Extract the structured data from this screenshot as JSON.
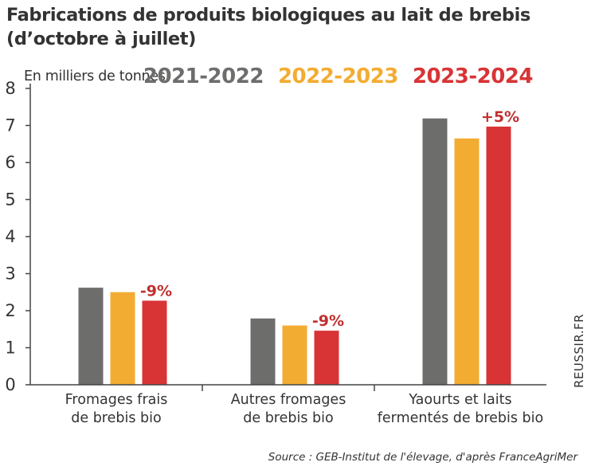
{
  "chart_data": {
    "type": "bar",
    "title_lines": [
      "Fabrications de produits biologiques au lait de brebis",
      "(d’octobre à juillet)"
    ],
    "ylabel": "En milliers de tonnes",
    "ylim": [
      0,
      8
    ],
    "yticks": [
      0,
      1,
      2,
      3,
      4,
      5,
      6,
      7,
      8
    ],
    "grid": false,
    "legend_position": "top-right",
    "categories": [
      [
        "Fromages frais",
        "de brebis bio"
      ],
      [
        "Autres fromages",
        "de brebis bio"
      ],
      [
        "Yaourts et laits",
        "fermentés de brebis bio"
      ]
    ],
    "series": [
      {
        "name": "2021-2022",
        "color": "#6d6d6b",
        "values": [
          2.62,
          1.79,
          7.19
        ]
      },
      {
        "name": "2022-2023",
        "color": "#f3ac32",
        "values": [
          2.5,
          1.6,
          6.65
        ]
      },
      {
        "name": "2023-2024",
        "color": "#d83436",
        "values": [
          2.27,
          1.46,
          6.97
        ]
      }
    ],
    "annotations": [
      {
        "category": 0,
        "series": 2,
        "text": "-9%",
        "color": "#c0302f"
      },
      {
        "category": 1,
        "series": 2,
        "text": "-9%",
        "color": "#c0302f"
      },
      {
        "category": 2,
        "series": 2,
        "text": "+5%",
        "color": "#c0302f"
      }
    ]
  },
  "watermark": "REUSSIR.FR",
  "source": "Source : GEB-Institut de l'élevage, d'après FranceAgriMer"
}
